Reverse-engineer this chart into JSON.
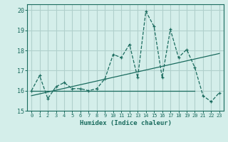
{
  "xlabel": "Humidex (Indice chaleur)",
  "background_color": "#d4eeea",
  "grid_color": "#b0d0cc",
  "line_color": "#1a6b5e",
  "xlim": [
    -0.5,
    23.5
  ],
  "ylim": [
    15,
    20.3
  ],
  "xticks": [
    0,
    1,
    2,
    3,
    4,
    5,
    6,
    7,
    8,
    9,
    10,
    11,
    12,
    13,
    14,
    15,
    16,
    17,
    18,
    19,
    20,
    21,
    22,
    23
  ],
  "yticks": [
    15,
    16,
    17,
    18,
    19,
    20
  ],
  "curve1_x": [
    0,
    1,
    2,
    3,
    4,
    5,
    6,
    7,
    8,
    9,
    10,
    11,
    12,
    13,
    14,
    15,
    16,
    17,
    18,
    19,
    20,
    21,
    22,
    23
  ],
  "curve1_y": [
    16.0,
    16.75,
    15.6,
    16.2,
    16.4,
    16.1,
    16.1,
    16.0,
    16.1,
    16.6,
    17.8,
    17.65,
    18.3,
    16.65,
    19.95,
    19.2,
    16.65,
    19.05,
    17.65,
    18.05,
    17.15,
    15.75,
    15.45,
    15.9
  ],
  "curve2_x": [
    0,
    20
  ],
  "curve2_y": [
    16.0,
    16.0
  ],
  "trend_x": [
    0,
    23
  ],
  "trend_y": [
    15.75,
    17.85
  ]
}
